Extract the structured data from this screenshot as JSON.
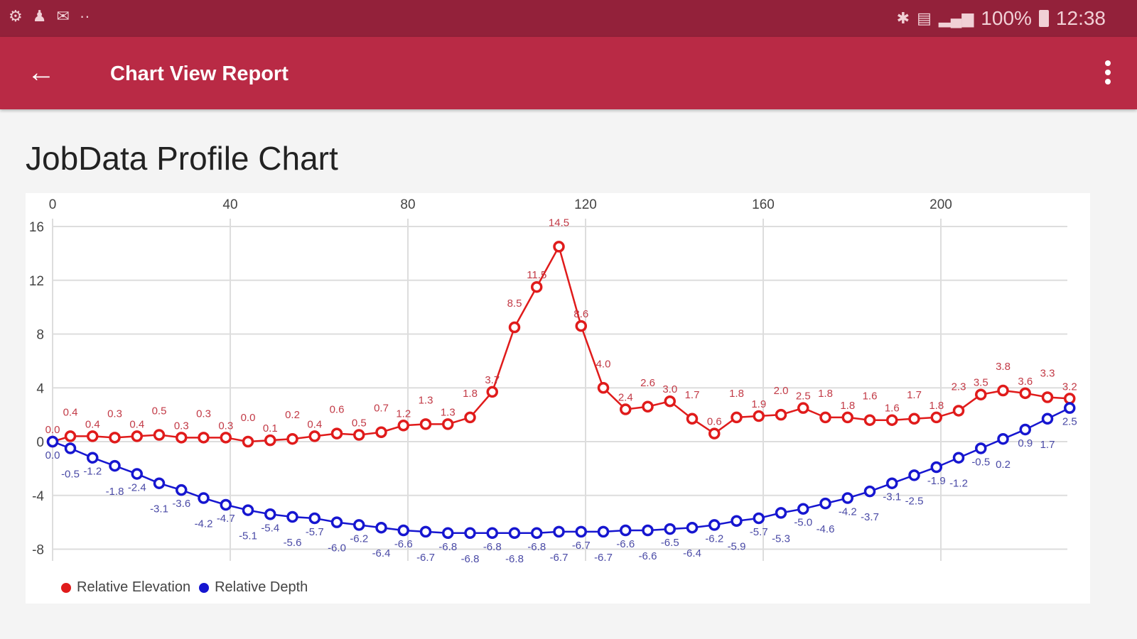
{
  "status_bar": {
    "left_icons": [
      "sync-icon",
      "person-icon",
      "mail-icon",
      "more-dots-icon"
    ],
    "right_icons": [
      "bluetooth-icon",
      "wifi-icon",
      "signal-icon",
      "battery-icon"
    ],
    "battery": "100%",
    "time": "12:38"
  },
  "app_bar": {
    "title": "Chart View Report",
    "back_icon": "arrow-left-icon",
    "menu_icon": "overflow-menu-icon",
    "color": "#b92a45"
  },
  "chart_title": "JobData Profile Chart",
  "chart_data": {
    "type": "line",
    "title": "JobData Profile Chart",
    "x_ticks": [
      0,
      40,
      80,
      120,
      160,
      200
    ],
    "y_ticks": [
      16,
      12,
      8,
      4,
      0,
      -4,
      -8
    ],
    "xlim": [
      0,
      229
    ],
    "ylim": [
      -8,
      16
    ],
    "grid": true,
    "x_axis_position": "top",
    "legend_position": "bottom-left",
    "x": [
      0,
      4,
      9,
      14,
      19,
      24,
      29,
      34,
      39,
      44,
      49,
      54,
      59,
      64,
      69,
      74,
      79,
      84,
      89,
      94,
      99,
      104,
      109,
      114,
      119,
      124,
      129,
      134,
      139,
      144,
      149,
      154,
      159,
      164,
      169,
      174,
      179,
      184,
      189,
      194,
      199,
      204,
      209,
      214,
      219,
      224,
      229
    ],
    "series": [
      {
        "name": "Relative Elevation",
        "color": "#e01b1b",
        "label_color": "#c23a46",
        "values": [
          0.0,
          0.4,
          0.4,
          0.3,
          0.4,
          0.5,
          0.3,
          0.3,
          0.3,
          0.0,
          0.1,
          0.2,
          0.4,
          0.6,
          0.5,
          0.7,
          1.2,
          1.3,
          1.3,
          1.8,
          3.7,
          8.5,
          11.5,
          14.5,
          8.6,
          4.0,
          2.4,
          2.6,
          3.0,
          1.7,
          0.6,
          1.8,
          1.9,
          2.0,
          2.5,
          1.8,
          1.8,
          1.6,
          1.6,
          1.7,
          1.8,
          2.3,
          3.5,
          3.8,
          3.6,
          3.3,
          3.2
        ]
      },
      {
        "name": "Relative Depth",
        "color": "#1616d0",
        "label_color": "#4a4aa6",
        "values": [
          0.0,
          -0.5,
          -1.2,
          -1.8,
          -2.4,
          -3.1,
          -3.6,
          -4.2,
          -4.7,
          -5.1,
          -5.4,
          -5.6,
          -5.7,
          -6.0,
          -6.2,
          -6.4,
          -6.6,
          -6.7,
          -6.8,
          -6.8,
          -6.8,
          -6.8,
          -6.8,
          -6.7,
          -6.7,
          -6.7,
          -6.6,
          -6.6,
          -6.5,
          -6.4,
          -6.2,
          -5.9,
          -5.7,
          -5.3,
          -5.0,
          -4.6,
          -4.2,
          -3.7,
          -3.1,
          -2.5,
          -1.9,
          -1.2,
          -0.5,
          0.2,
          0.9,
          1.7,
          2.5
        ]
      }
    ]
  }
}
